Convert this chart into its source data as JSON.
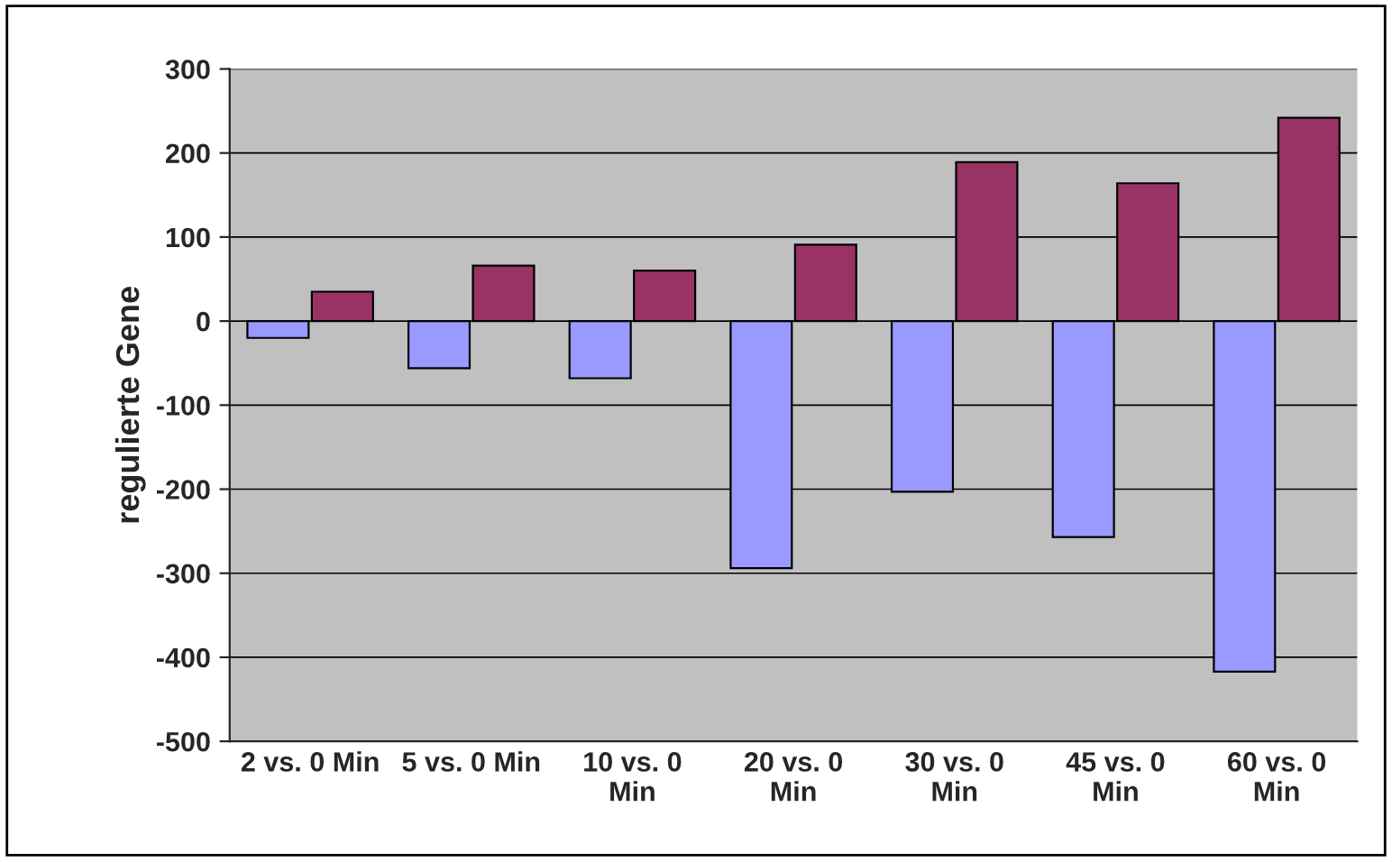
{
  "chart_data": {
    "type": "bar",
    "ylabel": "regulierte Gene",
    "categories": [
      "2 vs. 0 Min",
      "5 vs. 0 Min",
      "10 vs. 0 Min",
      "20 vs. 0 Min",
      "30 vs. 0 Min",
      "45 vs. 0 Min",
      "60 vs. 0 Min"
    ],
    "series": [
      {
        "color": "#9999ff",
        "values": [
          -20,
          -56,
          -68,
          -294,
          -203,
          -257,
          -417
        ]
      },
      {
        "color": "#993366",
        "values": [
          35,
          66,
          60,
          91,
          189,
          164,
          242
        ]
      }
    ],
    "ylim": [
      -500,
      300
    ],
    "yticks": [
      -500,
      -400,
      -300,
      -200,
      -100,
      0,
      100,
      200,
      300
    ],
    "grid": "y",
    "legend": false
  }
}
